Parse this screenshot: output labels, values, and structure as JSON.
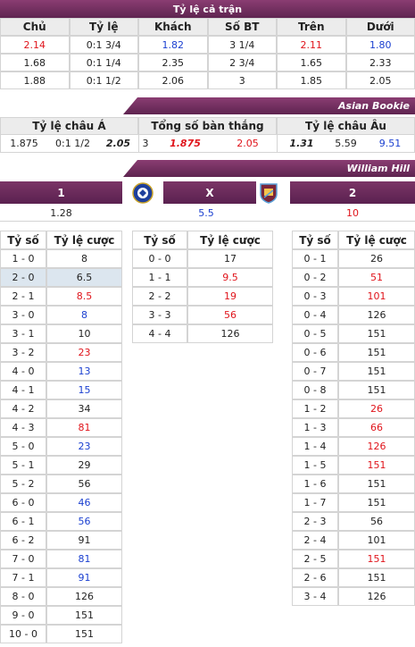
{
  "full_match": {
    "title": "Tỷ lệ cả trận",
    "columns": [
      "Chủ",
      "Tỷ lệ",
      "Khách",
      "Số BT",
      "Trên",
      "Dưới"
    ],
    "rows": [
      [
        {
          "text": "2.14",
          "color": "#e0141b"
        },
        "0:1 3/4",
        {
          "text": "1.82",
          "color": "#1a3fd0"
        },
        "3 1/4",
        {
          "text": "2.11",
          "color": "#e0141b"
        },
        {
          "text": "1.80",
          "color": "#1a3fd0"
        }
      ],
      [
        "1.68",
        "0:1 1/4",
        "2.35",
        "2 3/4",
        "1.65",
        "2.33"
      ],
      [
        "1.88",
        "0:1 1/2",
        "2.06",
        "3",
        "1.85",
        "2.05"
      ]
    ]
  },
  "asian_bookie": {
    "title": "Asian Bookie",
    "groups": [
      "Tỷ lệ châu Á",
      "Tổng số bàn thắng",
      "Tỷ lệ châu Âu"
    ],
    "row": [
      "1.875",
      "0:1 1/2",
      {
        "text": "2.05",
        "bold": true
      },
      "3",
      {
        "text": "1.875",
        "bold": true,
        "color": "#e0141b"
      },
      {
        "text": "2.05",
        "color": "#e0141b"
      },
      {
        "text": "1.31",
        "bold": true
      },
      "5.59",
      {
        "text": "9.51",
        "color": "#1a3fd0"
      }
    ]
  },
  "william_hill": {
    "title": "William Hill",
    "outcomes": [
      "1",
      "X",
      "2"
    ],
    "odds": [
      "1.28",
      {
        "text": "5.5",
        "color": "#1a3fd0"
      },
      {
        "text": "10",
        "color": "#e0141b"
      }
    ]
  },
  "correct_score": {
    "columns": [
      "Tỷ số",
      "Tỷ lệ cược"
    ],
    "tables": [
      {
        "highlight_row": 1,
        "rows": [
          [
            "1 - 0",
            "8"
          ],
          [
            "2 - 0",
            "6.5"
          ],
          [
            "2 - 1",
            {
              "text": "8.5",
              "color": "#e0141b"
            }
          ],
          [
            "3 - 0",
            {
              "text": "8",
              "color": "#1a3fd0"
            }
          ],
          [
            "3 - 1",
            "10"
          ],
          [
            "3 - 2",
            {
              "text": "23",
              "color": "#e0141b"
            }
          ],
          [
            "4 - 0",
            {
              "text": "13",
              "color": "#1a3fd0"
            }
          ],
          [
            "4 - 1",
            {
              "text": "15",
              "color": "#1a3fd0"
            }
          ],
          [
            "4 - 2",
            "34"
          ],
          [
            "4 - 3",
            {
              "text": "81",
              "color": "#e0141b"
            }
          ],
          [
            "5 - 0",
            {
              "text": "23",
              "color": "#1a3fd0"
            }
          ],
          [
            "5 - 1",
            "29"
          ],
          [
            "5 - 2",
            "56"
          ],
          [
            "6 - 0",
            {
              "text": "46",
              "color": "#1a3fd0"
            }
          ],
          [
            "6 - 1",
            {
              "text": "56",
              "color": "#1a3fd0"
            }
          ],
          [
            "6 - 2",
            "91"
          ],
          [
            "7 - 0",
            {
              "text": "81",
              "color": "#1a3fd0"
            }
          ],
          [
            "7 - 1",
            {
              "text": "91",
              "color": "#1a3fd0"
            }
          ],
          [
            "8 - 0",
            "126"
          ],
          [
            "9 - 0",
            "151"
          ],
          [
            "10 - 0",
            "151"
          ]
        ]
      },
      {
        "rows": [
          [
            "0 - 0",
            "17"
          ],
          [
            "1 - 1",
            {
              "text": "9.5",
              "color": "#e0141b"
            }
          ],
          [
            "2 - 2",
            {
              "text": "19",
              "color": "#e0141b"
            }
          ],
          [
            "3 - 3",
            {
              "text": "56",
              "color": "#e0141b"
            }
          ],
          [
            "4 - 4",
            "126"
          ]
        ]
      },
      {
        "rows": [
          [
            "0 - 1",
            "26"
          ],
          [
            "0 - 2",
            {
              "text": "51",
              "color": "#e0141b"
            }
          ],
          [
            "0 - 3",
            {
              "text": "101",
              "color": "#e0141b"
            }
          ],
          [
            "0 - 4",
            "126"
          ],
          [
            "0 - 5",
            "151"
          ],
          [
            "0 - 6",
            "151"
          ],
          [
            "0 - 7",
            "151"
          ],
          [
            "0 - 8",
            "151"
          ],
          [
            "1 - 2",
            {
              "text": "26",
              "color": "#e0141b"
            }
          ],
          [
            "1 - 3",
            {
              "text": "66",
              "color": "#e0141b"
            }
          ],
          [
            "1 - 4",
            {
              "text": "126",
              "color": "#e0141b"
            }
          ],
          [
            "1 - 5",
            {
              "text": "151",
              "color": "#e0141b"
            }
          ],
          [
            "1 - 6",
            "151"
          ],
          [
            "1 - 7",
            "151"
          ],
          [
            "2 - 3",
            "56"
          ],
          [
            "2 - 4",
            "101"
          ],
          [
            "2 - 5",
            {
              "text": "151",
              "color": "#e0141b"
            }
          ],
          [
            "2 - 6",
            "151"
          ],
          [
            "3 - 4",
            "126"
          ]
        ]
      }
    ]
  }
}
